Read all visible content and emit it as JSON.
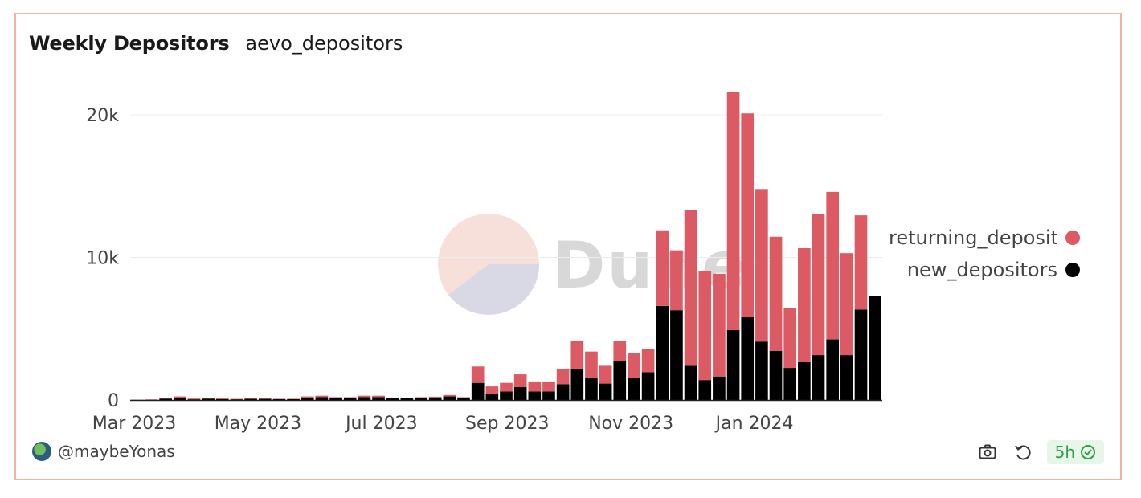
{
  "header": {
    "title": "Weekly Depositors",
    "query_name": "aevo_depositors"
  },
  "watermark": {
    "text": "Dune"
  },
  "footer": {
    "author": "@maybeYonas",
    "freshness": "5h"
  },
  "colors": {
    "returning": "#dc5a63",
    "new": "#000000",
    "border": "#f2b3a3",
    "badge": "#2e9e48"
  },
  "icons": {
    "camera": "camera-icon",
    "refresh": "refresh-icon",
    "verified": "check-badge-icon"
  },
  "chart_data": {
    "type": "bar",
    "stacked": true,
    "x_start": "2023-02-27",
    "categories": [
      "2023-02-27",
      "2023-03-06",
      "2023-03-13",
      "2023-03-20",
      "2023-03-27",
      "2023-04-03",
      "2023-04-10",
      "2023-04-17",
      "2023-04-24",
      "2023-05-01",
      "2023-05-08",
      "2023-05-15",
      "2023-05-22",
      "2023-05-29",
      "2023-06-05",
      "2023-06-12",
      "2023-06-19",
      "2023-06-26",
      "2023-07-03",
      "2023-07-10",
      "2023-07-17",
      "2023-07-24",
      "2023-07-31",
      "2023-08-07",
      "2023-08-14",
      "2023-08-21",
      "2023-08-28",
      "2023-09-04",
      "2023-09-11",
      "2023-09-18",
      "2023-09-25",
      "2023-10-02",
      "2023-10-09",
      "2023-10-16",
      "2023-10-23",
      "2023-10-30",
      "2023-11-06",
      "2023-11-13",
      "2023-11-20",
      "2023-11-27",
      "2023-12-04",
      "2023-12-11",
      "2023-12-18",
      "2023-12-25",
      "2024-01-01",
      "2024-01-08",
      "2024-01-15",
      "2024-01-22",
      "2024-01-29",
      "2024-02-05",
      "2024-02-12",
      "2024-02-19",
      "2024-02-26"
    ],
    "series": [
      {
        "name": "new_depositors",
        "color": "#000000",
        "values": [
          10,
          20,
          100,
          150,
          50,
          100,
          60,
          50,
          80,
          80,
          60,
          60,
          150,
          200,
          150,
          150,
          200,
          200,
          120,
          120,
          150,
          180,
          250,
          150,
          1200,
          400,
          600,
          900,
          600,
          600,
          1100,
          2200,
          1550,
          1150,
          2750,
          1550,
          1950,
          6600,
          6300,
          2400,
          1400,
          1650,
          4900,
          5800,
          4100,
          3450,
          2250,
          2650,
          3150,
          4250,
          3150,
          6350,
          7300
        ]
      },
      {
        "name": "returning_depositors",
        "color": "#dc5a63",
        "values": [
          10,
          20,
          50,
          100,
          50,
          50,
          50,
          30,
          50,
          30,
          30,
          30,
          100,
          100,
          50,
          50,
          100,
          100,
          50,
          50,
          50,
          50,
          100,
          50,
          1150,
          550,
          600,
          900,
          700,
          700,
          1100,
          1950,
          1850,
          1250,
          1400,
          1750,
          1650,
          5300,
          4200,
          10900,
          7650,
          7200,
          16700,
          14300,
          10700,
          8000,
          4200,
          8000,
          9900,
          10350,
          7150,
          6600,
          0
        ]
      }
    ],
    "legend": [
      "returning_depositors",
      "new_depositors"
    ],
    "legend_placement": "right",
    "x_ticks": [
      {
        "label": "Mar 2023",
        "date": "2023-03-01"
      },
      {
        "label": "May 2023",
        "date": "2023-05-01"
      },
      {
        "label": "Jul 2023",
        "date": "2023-07-01"
      },
      {
        "label": "Sep 2023",
        "date": "2023-09-01"
      },
      {
        "label": "Nov 2023",
        "date": "2023-11-01"
      },
      {
        "label": "Jan 2024",
        "date": "2024-01-01"
      }
    ],
    "y_ticks": [
      {
        "label": "0",
        "value": 0
      },
      {
        "label": "10k",
        "value": 10000
      },
      {
        "label": "20k",
        "value": 20000
      }
    ],
    "ylim": [
      0,
      20000
    ],
    "grid": true
  }
}
